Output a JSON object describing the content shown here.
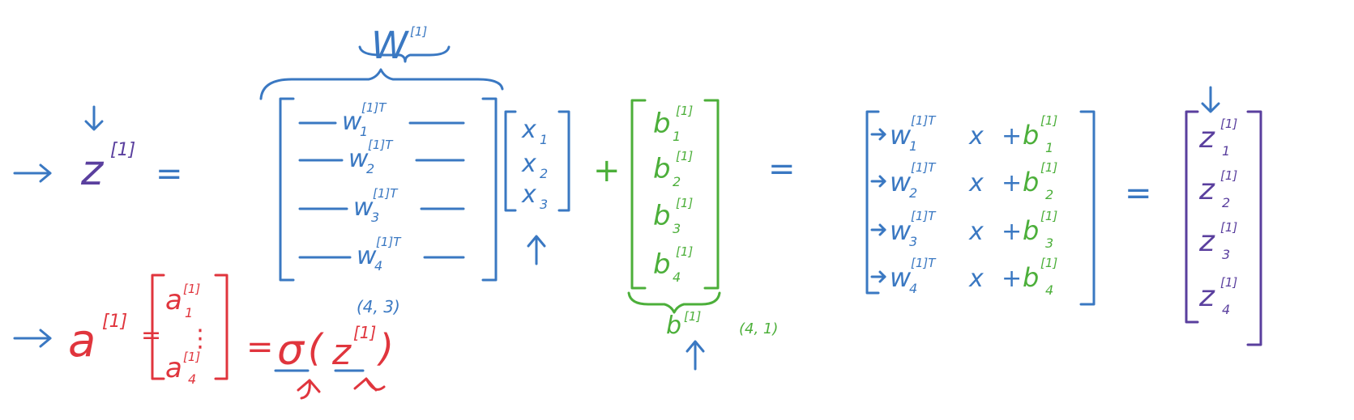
{
  "colors": {
    "weights": "#3a78c2",
    "z_vector": "#5a3f9e",
    "bias": "#4caf3a",
    "activation": "#e0353d"
  },
  "W_label": {
    "base": "W",
    "sup": "[1]"
  },
  "z_lhs": {
    "base": "z",
    "sup": "[1]",
    "equals": "="
  },
  "W_rows": [
    {
      "base": "w",
      "sub": "1",
      "sup": "[1]T"
    },
    {
      "base": "w",
      "sub": "2",
      "sup": "[1]T"
    },
    {
      "base": "w",
      "sub": "3",
      "sup": "[1]T"
    },
    {
      "base": "w",
      "sub": "4",
      "sup": "[1]T"
    }
  ],
  "W_shape": "(4, 3)",
  "x_vector": [
    {
      "base": "x",
      "sub": "1"
    },
    {
      "base": "x",
      "sub": "2"
    },
    {
      "base": "x",
      "sub": "3"
    }
  ],
  "plus": "+",
  "b_vector": [
    {
      "base": "b",
      "sub": "1",
      "sup": "[1]"
    },
    {
      "base": "b",
      "sub": "2",
      "sup": "[1]"
    },
    {
      "base": "b",
      "sub": "3",
      "sup": "[1]"
    },
    {
      "base": "b",
      "sub": "4",
      "sup": "[1]"
    }
  ],
  "b_label": {
    "base": "b",
    "sup": "[1]"
  },
  "b_shape": "(4, 1)",
  "equals": "=",
  "result_rows": [
    {
      "w": "w",
      "wsub": "1",
      "wsup": "[1]T",
      "x": "x",
      "plus": "+",
      "b": "b",
      "bsub": "1",
      "bsup": "[1]"
    },
    {
      "w": "w",
      "wsub": "2",
      "wsup": "[1]T",
      "x": "x",
      "plus": "+",
      "b": "b",
      "bsub": "2",
      "bsup": "[1]"
    },
    {
      "w": "w",
      "wsub": "3",
      "wsup": "[1]T",
      "x": "x",
      "plus": "+",
      "b": "b",
      "bsub": "3",
      "bsup": "[1]"
    },
    {
      "w": "w",
      "wsub": "4",
      "wsup": "[1]T",
      "x": "x",
      "plus": "+",
      "b": "b",
      "bsub": "4",
      "bsup": "[1]"
    }
  ],
  "equals2": "=",
  "z_vector": [
    {
      "base": "z",
      "sub": "1",
      "sup": "[1]"
    },
    {
      "base": "z",
      "sub": "2",
      "sup": "[1]"
    },
    {
      "base": "z",
      "sub": "3",
      "sup": "[1]"
    },
    {
      "base": "z",
      "sub": "4",
      "sup": "[1]"
    }
  ],
  "a_lhs": {
    "base": "a",
    "sup": "[1]",
    "equals": "="
  },
  "a_vector": {
    "first": {
      "base": "a",
      "sub": "1",
      "sup": "[1]"
    },
    "dots": "⋮",
    "last": {
      "base": "a",
      "sub": "4",
      "sup": "[1]"
    }
  },
  "activation": {
    "equals": "=",
    "sigma": "σ",
    "open": "(",
    "z": "z",
    "sup": "[1]",
    "close": ")"
  }
}
